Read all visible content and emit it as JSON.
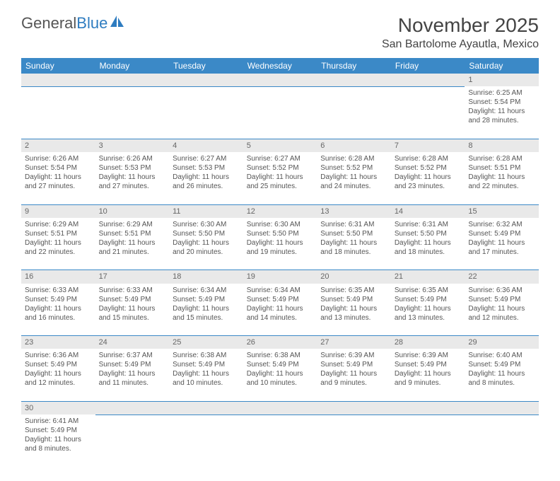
{
  "logo": {
    "general": "General",
    "blue": "Blue"
  },
  "title": "November 2025",
  "location": "San Bartolome Ayautla, Mexico",
  "colors": {
    "header_bg": "#3b89c7",
    "header_fg": "#ffffff",
    "daynum_bg": "#e9e9e9",
    "border": "#3b89c7",
    "text": "#555555",
    "logo_blue": "#2e7cc0"
  },
  "week_headers": [
    "Sunday",
    "Monday",
    "Tuesday",
    "Wednesday",
    "Thursday",
    "Friday",
    "Saturday"
  ],
  "weeks": [
    [
      null,
      null,
      null,
      null,
      null,
      null,
      {
        "n": "1",
        "sr": "Sunrise: 6:25 AM",
        "ss": "Sunset: 5:54 PM",
        "d1": "Daylight: 11 hours",
        "d2": "and 28 minutes."
      }
    ],
    [
      {
        "n": "2",
        "sr": "Sunrise: 6:26 AM",
        "ss": "Sunset: 5:54 PM",
        "d1": "Daylight: 11 hours",
        "d2": "and 27 minutes."
      },
      {
        "n": "3",
        "sr": "Sunrise: 6:26 AM",
        "ss": "Sunset: 5:53 PM",
        "d1": "Daylight: 11 hours",
        "d2": "and 27 minutes."
      },
      {
        "n": "4",
        "sr": "Sunrise: 6:27 AM",
        "ss": "Sunset: 5:53 PM",
        "d1": "Daylight: 11 hours",
        "d2": "and 26 minutes."
      },
      {
        "n": "5",
        "sr": "Sunrise: 6:27 AM",
        "ss": "Sunset: 5:52 PM",
        "d1": "Daylight: 11 hours",
        "d2": "and 25 minutes."
      },
      {
        "n": "6",
        "sr": "Sunrise: 6:28 AM",
        "ss": "Sunset: 5:52 PM",
        "d1": "Daylight: 11 hours",
        "d2": "and 24 minutes."
      },
      {
        "n": "7",
        "sr": "Sunrise: 6:28 AM",
        "ss": "Sunset: 5:52 PM",
        "d1": "Daylight: 11 hours",
        "d2": "and 23 minutes."
      },
      {
        "n": "8",
        "sr": "Sunrise: 6:28 AM",
        "ss": "Sunset: 5:51 PM",
        "d1": "Daylight: 11 hours",
        "d2": "and 22 minutes."
      }
    ],
    [
      {
        "n": "9",
        "sr": "Sunrise: 6:29 AM",
        "ss": "Sunset: 5:51 PM",
        "d1": "Daylight: 11 hours",
        "d2": "and 22 minutes."
      },
      {
        "n": "10",
        "sr": "Sunrise: 6:29 AM",
        "ss": "Sunset: 5:51 PM",
        "d1": "Daylight: 11 hours",
        "d2": "and 21 minutes."
      },
      {
        "n": "11",
        "sr": "Sunrise: 6:30 AM",
        "ss": "Sunset: 5:50 PM",
        "d1": "Daylight: 11 hours",
        "d2": "and 20 minutes."
      },
      {
        "n": "12",
        "sr": "Sunrise: 6:30 AM",
        "ss": "Sunset: 5:50 PM",
        "d1": "Daylight: 11 hours",
        "d2": "and 19 minutes."
      },
      {
        "n": "13",
        "sr": "Sunrise: 6:31 AM",
        "ss": "Sunset: 5:50 PM",
        "d1": "Daylight: 11 hours",
        "d2": "and 18 minutes."
      },
      {
        "n": "14",
        "sr": "Sunrise: 6:31 AM",
        "ss": "Sunset: 5:50 PM",
        "d1": "Daylight: 11 hours",
        "d2": "and 18 minutes."
      },
      {
        "n": "15",
        "sr": "Sunrise: 6:32 AM",
        "ss": "Sunset: 5:49 PM",
        "d1": "Daylight: 11 hours",
        "d2": "and 17 minutes."
      }
    ],
    [
      {
        "n": "16",
        "sr": "Sunrise: 6:33 AM",
        "ss": "Sunset: 5:49 PM",
        "d1": "Daylight: 11 hours",
        "d2": "and 16 minutes."
      },
      {
        "n": "17",
        "sr": "Sunrise: 6:33 AM",
        "ss": "Sunset: 5:49 PM",
        "d1": "Daylight: 11 hours",
        "d2": "and 15 minutes."
      },
      {
        "n": "18",
        "sr": "Sunrise: 6:34 AM",
        "ss": "Sunset: 5:49 PM",
        "d1": "Daylight: 11 hours",
        "d2": "and 15 minutes."
      },
      {
        "n": "19",
        "sr": "Sunrise: 6:34 AM",
        "ss": "Sunset: 5:49 PM",
        "d1": "Daylight: 11 hours",
        "d2": "and 14 minutes."
      },
      {
        "n": "20",
        "sr": "Sunrise: 6:35 AM",
        "ss": "Sunset: 5:49 PM",
        "d1": "Daylight: 11 hours",
        "d2": "and 13 minutes."
      },
      {
        "n": "21",
        "sr": "Sunrise: 6:35 AM",
        "ss": "Sunset: 5:49 PM",
        "d1": "Daylight: 11 hours",
        "d2": "and 13 minutes."
      },
      {
        "n": "22",
        "sr": "Sunrise: 6:36 AM",
        "ss": "Sunset: 5:49 PM",
        "d1": "Daylight: 11 hours",
        "d2": "and 12 minutes."
      }
    ],
    [
      {
        "n": "23",
        "sr": "Sunrise: 6:36 AM",
        "ss": "Sunset: 5:49 PM",
        "d1": "Daylight: 11 hours",
        "d2": "and 12 minutes."
      },
      {
        "n": "24",
        "sr": "Sunrise: 6:37 AM",
        "ss": "Sunset: 5:49 PM",
        "d1": "Daylight: 11 hours",
        "d2": "and 11 minutes."
      },
      {
        "n": "25",
        "sr": "Sunrise: 6:38 AM",
        "ss": "Sunset: 5:49 PM",
        "d1": "Daylight: 11 hours",
        "d2": "and 10 minutes."
      },
      {
        "n": "26",
        "sr": "Sunrise: 6:38 AM",
        "ss": "Sunset: 5:49 PM",
        "d1": "Daylight: 11 hours",
        "d2": "and 10 minutes."
      },
      {
        "n": "27",
        "sr": "Sunrise: 6:39 AM",
        "ss": "Sunset: 5:49 PM",
        "d1": "Daylight: 11 hours",
        "d2": "and 9 minutes."
      },
      {
        "n": "28",
        "sr": "Sunrise: 6:39 AM",
        "ss": "Sunset: 5:49 PM",
        "d1": "Daylight: 11 hours",
        "d2": "and 9 minutes."
      },
      {
        "n": "29",
        "sr": "Sunrise: 6:40 AM",
        "ss": "Sunset: 5:49 PM",
        "d1": "Daylight: 11 hours",
        "d2": "and 8 minutes."
      }
    ],
    [
      {
        "n": "30",
        "sr": "Sunrise: 6:41 AM",
        "ss": "Sunset: 5:49 PM",
        "d1": "Daylight: 11 hours",
        "d2": "and 8 minutes."
      },
      null,
      null,
      null,
      null,
      null,
      null
    ]
  ]
}
